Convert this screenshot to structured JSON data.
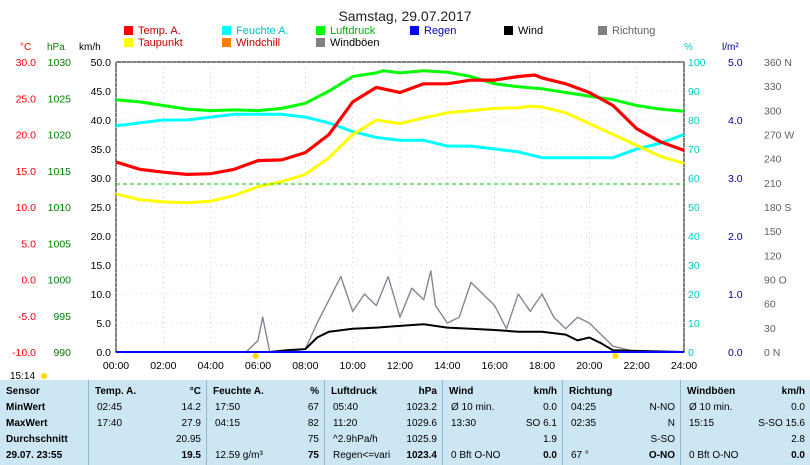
{
  "header": {
    "title": "Samstag, 29.07.2017",
    "clock": "15:14"
  },
  "colors": {
    "temp": "#ff0000",
    "taupunkt": "#ffff00",
    "feuchte": "#00ffff",
    "windchill": "#ff8000",
    "luftdruck": "#00ff00",
    "windboen": "#808080",
    "regen": "#0000ff",
    "wind": "#000000",
    "richtung": "#808080",
    "axis_c": "#ff0000",
    "axis_hpa": "#008000",
    "axis_pct": "#00c8c8",
    "axis_rain": "#0000a0",
    "axis_dir": "#606060",
    "table_bg": "#cde6f4"
  },
  "legend": [
    {
      "label": "Temp. A.",
      "color": "#ff0000",
      "text_color": "#c00000"
    },
    {
      "label": "Feuchte A.",
      "color": "#00ffff",
      "text_color": "#00c0c0"
    },
    {
      "label": "Luftdruck",
      "color": "#00ff00",
      "text_color": "#00b000"
    },
    {
      "label": "Regen",
      "color": "#0000ff",
      "text_color": "#0000c0"
    },
    {
      "label": "Wind",
      "color": "#000000",
      "text_color": "#000000"
    },
    {
      "label": "Richtung",
      "color": "#808080",
      "text_color": "#606060"
    },
    {
      "label": "Taupunkt",
      "color": "#ffff00",
      "text_color": "#c00000"
    },
    {
      "label": "Windchill",
      "color": "#ff8000",
      "text_color": "#c00000"
    },
    {
      "label": "Windböen",
      "color": "#808080",
      "text_color": "#000000"
    }
  ],
  "chart_data": {
    "type": "line",
    "x_range": [
      "00:00",
      "24:00"
    ],
    "x_ticks": [
      "00:00",
      "02:00",
      "04:00",
      "06:00",
      "08:00",
      "10:00",
      "12:00",
      "14:00",
      "16:00",
      "18:00",
      "20:00",
      "22:00",
      "24:00"
    ],
    "axes": {
      "temp_c": {
        "unit": "°C",
        "ylim": [
          -10,
          30
        ],
        "ticks": [
          "30.0",
          "25.0",
          "20.0",
          "15.0",
          "10.0",
          "5.0",
          "0.0",
          "-5.0",
          "-10.0"
        ]
      },
      "pressure_hpa": {
        "unit": "hPa",
        "ylim": [
          990,
          1030
        ],
        "ticks": [
          "1030",
          "1025",
          "1020",
          "1015",
          "1010",
          "1005",
          "1000",
          "995",
          "990"
        ]
      },
      "wind_kmh": {
        "unit": "km/h",
        "ylim": [
          0,
          50
        ],
        "ticks": [
          "50.0",
          "45.0",
          "40.0",
          "35.0",
          "30.0",
          "25.0",
          "20.0",
          "15.0",
          "10.0",
          "5.0",
          "0.0"
        ]
      },
      "humidity_pct": {
        "unit": "%",
        "ylim": [
          0,
          100
        ],
        "ticks": [
          "100",
          "90",
          "80",
          "70",
          "60",
          "50",
          "40",
          "30",
          "20",
          "10",
          "0"
        ]
      },
      "rain_lm2": {
        "unit": "l/m²",
        "ylim": [
          0,
          5
        ],
        "ticks": [
          "5.0",
          "4.0",
          "3.0",
          "2.0",
          "1.0",
          "0.0"
        ]
      },
      "direction_deg": {
        "ylim": [
          0,
          360
        ],
        "ticks": [
          "360 N",
          "330",
          "300",
          "270 W",
          "240",
          "210",
          "180 S",
          "150",
          "120",
          "90 O",
          "60",
          "30",
          "0 N"
        ]
      }
    },
    "series": [
      {
        "name": "Temp. A.",
        "axis": "temp_c",
        "x": [
          0,
          1,
          2,
          3,
          4,
          5,
          6,
          7,
          8,
          9,
          10,
          11,
          12,
          13,
          14,
          15,
          16,
          17,
          17.7,
          18,
          19,
          20,
          21,
          22,
          23,
          24
        ],
        "y": [
          16.2,
          15.2,
          14.8,
          14.5,
          14.6,
          15.2,
          16.4,
          16.5,
          17.5,
          20.0,
          24.5,
          26.5,
          25.8,
          27.0,
          27.0,
          27.5,
          27.5,
          28.0,
          28.2,
          27.8,
          27.0,
          25.8,
          24.0,
          20.8,
          19.0,
          17.8
        ]
      },
      {
        "name": "Taupunkt",
        "axis": "temp_c",
        "x": [
          0,
          1,
          2,
          3,
          4,
          5,
          6,
          7,
          8,
          9,
          10,
          11,
          12,
          13,
          14,
          15,
          16,
          17,
          17.5,
          18,
          19,
          20,
          21,
          22,
          23,
          24
        ],
        "y": [
          11.8,
          11.0,
          10.7,
          10.6,
          10.8,
          11.6,
          12.8,
          13.5,
          14.5,
          16.8,
          20.0,
          22.0,
          21.5,
          22.3,
          23.0,
          23.3,
          23.6,
          23.7,
          23.9,
          23.8,
          23.0,
          21.5,
          20.0,
          18.5,
          17.0,
          16.0
        ]
      },
      {
        "name": "Feuchte A.",
        "axis": "humidity_pct",
        "x": [
          0,
          1,
          2,
          3,
          4,
          5,
          6,
          7,
          8,
          9,
          10,
          11,
          12,
          13,
          14,
          15,
          16,
          17,
          18,
          19,
          20,
          21,
          22,
          23,
          24
        ],
        "y": [
          78,
          79,
          80,
          80,
          81,
          82,
          82,
          82,
          81,
          79,
          76,
          74,
          73,
          73,
          71,
          71,
          70,
          69,
          67,
          67,
          67,
          67,
          70,
          72,
          75
        ]
      },
      {
        "name": "Luftdruck",
        "axis": "pressure_hpa",
        "x": [
          0,
          1,
          2,
          3,
          4,
          5,
          6,
          7,
          8,
          9,
          10,
          11,
          11.3,
          12,
          13,
          14,
          15,
          16,
          17,
          18,
          19,
          20,
          21,
          22,
          23,
          24
        ],
        "y": [
          1024.8,
          1024.5,
          1024.0,
          1023.5,
          1023.3,
          1023.4,
          1023.3,
          1023.6,
          1024.3,
          1026.0,
          1028.0,
          1028.5,
          1028.8,
          1028.5,
          1028.8,
          1028.6,
          1028.0,
          1027.0,
          1026.6,
          1026.3,
          1025.8,
          1025.3,
          1024.8,
          1024.0,
          1023.5,
          1023.2
        ]
      },
      {
        "name": "Wind",
        "axis": "wind_kmh",
        "x": [
          0,
          6.5,
          7.2,
          8,
          8.5,
          9,
          10,
          11,
          12,
          13,
          14,
          15,
          16,
          17,
          18,
          19,
          19.5,
          20,
          20.5,
          21,
          24
        ],
        "y": [
          0,
          0,
          0.3,
          0.5,
          2.5,
          3.5,
          4.0,
          4.2,
          4.5,
          4.8,
          4.2,
          4.0,
          3.8,
          3.5,
          3.5,
          3.0,
          2.0,
          2.5,
          1.5,
          0.3,
          0
        ]
      },
      {
        "name": "Windböen",
        "axis": "wind_kmh",
        "x": [
          0,
          5.5,
          6,
          6.2,
          6.5,
          7,
          8,
          8.5,
          9,
          9.5,
          10,
          10.5,
          11,
          11.5,
          12,
          12.5,
          13,
          13.3,
          13.5,
          14,
          14.5,
          15,
          15.5,
          16,
          16.5,
          17,
          17.5,
          18,
          18.5,
          19,
          19.5,
          20,
          21,
          22,
          24
        ],
        "y": [
          0,
          0,
          2,
          6,
          0,
          0,
          0.5,
          5,
          9,
          13,
          7,
          10,
          8,
          13,
          6,
          11,
          9,
          14,
          8,
          5,
          6,
          12,
          10,
          8,
          4,
          10,
          7,
          10,
          6,
          4,
          6,
          5,
          1,
          0,
          0
        ]
      },
      {
        "name": "Regen",
        "axis": "rain_lm2",
        "x": [
          0,
          24
        ],
        "y": [
          0,
          0
        ]
      }
    ]
  },
  "table": {
    "columns": [
      {
        "header": "Sensor",
        "unit": "",
        "rows": [
          {
            "label": "MinWert",
            "time": "",
            "value": ""
          },
          {
            "label": "MaxWert",
            "time": "",
            "value": ""
          },
          {
            "label": "Durchschnitt",
            "time": "",
            "value": ""
          },
          {
            "label": "29.07. 23:55",
            "time": "",
            "value": ""
          }
        ]
      },
      {
        "header": "Temp. A.",
        "unit": "°C",
        "rows": [
          {
            "time": "02:45",
            "value": "14.2"
          },
          {
            "time": "17:40",
            "value": "27.9"
          },
          {
            "time": "",
            "value": "20.95"
          },
          {
            "time": "",
            "value": "19.5"
          }
        ]
      },
      {
        "header": "Feuchte A.",
        "unit": "%",
        "rows": [
          {
            "time": "17:50",
            "value": "67"
          },
          {
            "time": "04:15",
            "value": "82"
          },
          {
            "time": "",
            "value": "75"
          },
          {
            "time": "12.59 g/m³",
            "value": "75"
          }
        ]
      },
      {
        "header": "Luftdruck",
        "unit": "hPa",
        "rows": [
          {
            "time": "05:40",
            "value": "1023.2"
          },
          {
            "time": "11:20",
            "value": "1029.6"
          },
          {
            "time": "^2.9hPa/h",
            "value": "1025.9"
          },
          {
            "time": "Regen<=vari",
            "value": "1023.4"
          }
        ]
      },
      {
        "header": "Wind",
        "unit": "km/h",
        "rows": [
          {
            "time": "Ø 10 min.",
            "value": "0.0"
          },
          {
            "time": "13:30",
            "value": "SO 6.1"
          },
          {
            "time": "",
            "value": "1.9"
          },
          {
            "time": "0 Bft O-NO",
            "value": "0.0"
          }
        ]
      },
      {
        "header": "Richtung",
        "unit": "",
        "rows": [
          {
            "time": "04:25",
            "value": "N-NO"
          },
          {
            "time": "02:35",
            "value": "N"
          },
          {
            "time": "",
            "value": "S-SO"
          },
          {
            "time": "67 °",
            "value": "O-NO"
          }
        ]
      },
      {
        "header": "Windböen",
        "unit": "km/h",
        "rows": [
          {
            "time": "Ø 10 min.",
            "value": "0.0"
          },
          {
            "time": "15:15",
            "value": "S-SO 15.6"
          },
          {
            "time": "",
            "value": "2.8"
          },
          {
            "time": "0 Bft O-NO",
            "value": "0.0"
          }
        ]
      }
    ]
  }
}
